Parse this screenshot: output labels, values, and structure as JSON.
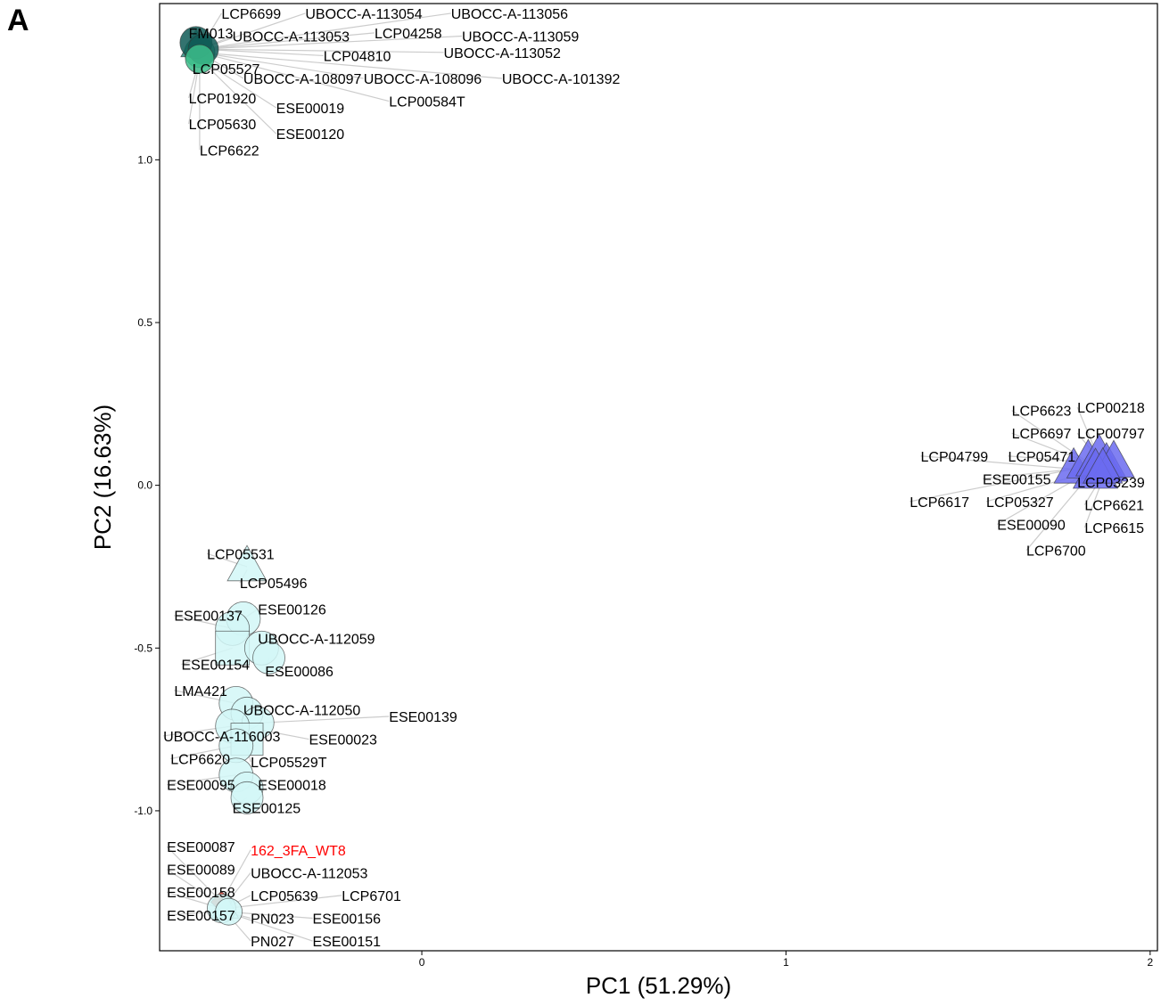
{
  "panel_label": "A",
  "chart_data": {
    "type": "scatter",
    "title": "",
    "xlabel": "PC1 (51.29%)",
    "ylabel": "PC2 (16.63%)",
    "xlim": [
      -0.72,
      2.02
    ],
    "ylim": [
      -1.43,
      1.48
    ],
    "x_ticks": [
      {
        "value": 0,
        "label": "0"
      },
      {
        "value": 1,
        "label": "1"
      },
      {
        "value": 2,
        "label": "2"
      }
    ],
    "y_ticks": [
      {
        "value": 1.0,
        "label": "1.0"
      },
      {
        "value": 0.5,
        "label": "0.5"
      },
      {
        "value": 0.0,
        "label": "0.0"
      },
      {
        "value": -0.5,
        "label": "-0.5"
      },
      {
        "value": -1.0,
        "label": "-1.0"
      }
    ],
    "grid": false,
    "legend": "none",
    "colors": {
      "dark_teal": "#0f5a56",
      "teal": "#2f8a7e",
      "green": "#3dbd8b",
      "blue": "#6b6bf0",
      "light_cyan": "#d2f7f7",
      "red_marker": "#d9463b",
      "highlight_label": "#ff0000",
      "label": "#000000",
      "leader_line": "#cccccc"
    },
    "points": [
      {
        "x": -0.62,
        "y": 1.35,
        "shape": "triangle",
        "color": "#2f8a7e",
        "size": 34
      },
      {
        "x": -0.61,
        "y": 1.33,
        "shape": "circle",
        "color": "#3dbd8b",
        "size": 34
      },
      {
        "x": -0.62,
        "y": 1.36,
        "shape": "circle",
        "color": "#0f5a56",
        "size": 36
      },
      {
        "x": -0.6,
        "y": 1.34,
        "shape": "circle",
        "color": "#0f5a56",
        "size": 34
      },
      {
        "x": -0.61,
        "y": 1.31,
        "shape": "circle",
        "color": "#3dbd8b",
        "size": 32
      },
      {
        "x": 1.79,
        "y": 0.05,
        "shape": "triangle",
        "color": "#6b6bf0",
        "size": 44
      },
      {
        "x": 1.83,
        "y": 0.07,
        "shape": "triangle",
        "color": "#6b6bf0",
        "size": 48
      },
      {
        "x": 1.86,
        "y": 0.08,
        "shape": "triangle",
        "color": "#6b6bf0",
        "size": 52
      },
      {
        "x": 1.88,
        "y": 0.06,
        "shape": "triangle",
        "color": "#6b6bf0",
        "size": 48
      },
      {
        "x": 1.9,
        "y": 0.07,
        "shape": "triangle",
        "color": "#6b6bf0",
        "size": 46
      },
      {
        "x": 1.85,
        "y": 0.04,
        "shape": "triangle",
        "color": "#6b6bf0",
        "size": 50
      },
      {
        "x": 1.87,
        "y": 0.05,
        "shape": "triangle",
        "color": "#6b6bf0",
        "size": 44
      },
      {
        "x": -0.48,
        "y": -0.25,
        "shape": "triangle",
        "color": "#d2f7f7",
        "size": 44
      },
      {
        "x": -0.49,
        "y": -0.41,
        "shape": "circle",
        "color": "#d2f7f7",
        "size": 38
      },
      {
        "x": -0.52,
        "y": -0.44,
        "shape": "circle",
        "color": "#d2f7f7",
        "size": 38
      },
      {
        "x": -0.52,
        "y": -0.5,
        "shape": "square",
        "color": "#d2f7f7",
        "size": 38
      },
      {
        "x": -0.44,
        "y": -0.5,
        "shape": "circle",
        "color": "#d2f7f7",
        "size": 38
      },
      {
        "x": -0.42,
        "y": -0.53,
        "shape": "circle",
        "color": "#d2f7f7",
        "size": 36
      },
      {
        "x": -0.51,
        "y": -0.67,
        "shape": "circle",
        "color": "#d2f7f7",
        "size": 38
      },
      {
        "x": -0.48,
        "y": -0.7,
        "shape": "circle",
        "color": "#d2f7f7",
        "size": 36
      },
      {
        "x": -0.45,
        "y": -0.73,
        "shape": "circle",
        "color": "#d2f7f7",
        "size": 36
      },
      {
        "x": -0.52,
        "y": -0.74,
        "shape": "circle",
        "color": "#d2f7f7",
        "size": 38
      },
      {
        "x": -0.48,
        "y": -0.78,
        "shape": "square",
        "color": "#d2f7f7",
        "size": 36
      },
      {
        "x": -0.51,
        "y": -0.8,
        "shape": "circle",
        "color": "#d2f7f7",
        "size": 38
      },
      {
        "x": -0.51,
        "y": -0.89,
        "shape": "circle",
        "color": "#d2f7f7",
        "size": 38
      },
      {
        "x": -0.48,
        "y": -0.93,
        "shape": "circle",
        "color": "#d2f7f7",
        "size": 36
      },
      {
        "x": -0.48,
        "y": -0.96,
        "shape": "circle",
        "color": "#d2f7f7",
        "size": 36
      },
      {
        "x": -0.55,
        "y": -1.28,
        "shape": "diamond",
        "color": "#d9463b",
        "size": 24
      },
      {
        "x": -0.54,
        "y": -1.3,
        "shape": "triangle",
        "color": "#d2f7f7",
        "size": 30
      },
      {
        "x": -0.55,
        "y": -1.3,
        "shape": "circle",
        "color": "#d2f7f7",
        "size": 32
      },
      {
        "x": -0.53,
        "y": -1.31,
        "shape": "circle",
        "color": "#d2f7f7",
        "size": 30
      }
    ],
    "annotations": [
      {
        "text": "LCP6699",
        "x": -0.55,
        "y": 1.45,
        "ax": -0.61,
        "ay": 1.34
      },
      {
        "text": "UBOCC-A-113054",
        "x": -0.32,
        "y": 1.45,
        "ax": -0.61,
        "ay": 1.34
      },
      {
        "text": "UBOCC-A-113056",
        "x": 0.08,
        "y": 1.45,
        "ax": -0.61,
        "ay": 1.34
      },
      {
        "text": "FM013",
        "x": -0.64,
        "y": 1.39,
        "ax": -0.62,
        "ay": 1.35
      },
      {
        "text": "UBOCC-A-113053",
        "x": -0.52,
        "y": 1.38,
        "ax": -0.61,
        "ay": 1.34
      },
      {
        "text": "LCP04258",
        "x": -0.13,
        "y": 1.39,
        "ax": -0.61,
        "ay": 1.34
      },
      {
        "text": "UBOCC-A-113059",
        "x": 0.11,
        "y": 1.38,
        "ax": -0.61,
        "ay": 1.34
      },
      {
        "text": "LCP04810",
        "x": -0.27,
        "y": 1.32,
        "ax": -0.61,
        "ay": 1.34
      },
      {
        "text": "UBOCC-A-113052",
        "x": 0.06,
        "y": 1.33,
        "ax": -0.61,
        "ay": 1.34
      },
      {
        "text": "LCP05527",
        "x": -0.63,
        "y": 1.28,
        "ax": -0.61,
        "ay": 1.32
      },
      {
        "text": "UBOCC-A-108097",
        "x": -0.49,
        "y": 1.25,
        "ax": -0.61,
        "ay": 1.33
      },
      {
        "text": "UBOCC-A-108096",
        "x": -0.16,
        "y": 1.25,
        "ax": -0.61,
        "ay": 1.33
      },
      {
        "text": "UBOCC-A-101392",
        "x": 0.22,
        "y": 1.25,
        "ax": -0.61,
        "ay": 1.33
      },
      {
        "text": "LCP01920",
        "x": -0.64,
        "y": 1.19,
        "ax": -0.61,
        "ay": 1.31
      },
      {
        "text": "ESE00019",
        "x": -0.4,
        "y": 1.16,
        "ax": -0.61,
        "ay": 1.31
      },
      {
        "text": "LCP00584T",
        "x": -0.09,
        "y": 1.18,
        "ax": -0.61,
        "ay": 1.33
      },
      {
        "text": "LCP05630",
        "x": -0.64,
        "y": 1.11,
        "ax": -0.61,
        "ay": 1.31
      },
      {
        "text": "ESE00120",
        "x": -0.4,
        "y": 1.08,
        "ax": -0.61,
        "ay": 1.31
      },
      {
        "text": "LCP6622",
        "x": -0.61,
        "y": 1.03,
        "ax": -0.61,
        "ay": 1.31
      },
      {
        "text": "LCP6623",
        "x": 1.62,
        "y": 0.23,
        "ax": 1.83,
        "ay": 0.07
      },
      {
        "text": "LCP00218",
        "x": 1.8,
        "y": 0.24,
        "ax": 1.86,
        "ay": 0.08
      },
      {
        "text": "LCP6697",
        "x": 1.62,
        "y": 0.16,
        "ax": 1.83,
        "ay": 0.07
      },
      {
        "text": "LCP00797",
        "x": 1.8,
        "y": 0.16,
        "ax": 1.86,
        "ay": 0.08
      },
      {
        "text": "LCP04799",
        "x": 1.37,
        "y": 0.09,
        "ax": 1.79,
        "ay": 0.05
      },
      {
        "text": "LCP05471",
        "x": 1.61,
        "y": 0.09,
        "ax": 1.83,
        "ay": 0.07
      },
      {
        "text": "ESE00155",
        "x": 1.54,
        "y": 0.02,
        "ax": 1.79,
        "ay": 0.05
      },
      {
        "text": "LCP03239",
        "x": 1.8,
        "y": 0.01,
        "ax": 1.87,
        "ay": 0.05
      },
      {
        "text": "LCP6617",
        "x": 1.34,
        "y": -0.05,
        "ax": 1.79,
        "ay": 0.05
      },
      {
        "text": "LCP05327",
        "x": 1.55,
        "y": -0.05,
        "ax": 1.83,
        "ay": 0.04
      },
      {
        "text": "LCP6621",
        "x": 1.82,
        "y": -0.06,
        "ax": 1.88,
        "ay": 0.05
      },
      {
        "text": "ESE00090",
        "x": 1.58,
        "y": -0.12,
        "ax": 1.83,
        "ay": 0.04
      },
      {
        "text": "LCP6615",
        "x": 1.82,
        "y": -0.13,
        "ax": 1.88,
        "ay": 0.05
      },
      {
        "text": "LCP6700",
        "x": 1.66,
        "y": -0.2,
        "ax": 1.84,
        "ay": 0.04
      },
      {
        "text": "LCP05531",
        "x": -0.59,
        "y": -0.21,
        "ax": -0.48,
        "ay": -0.25
      },
      {
        "text": "LCP05496",
        "x": -0.5,
        "y": -0.3,
        "ax": -0.48,
        "ay": -0.26
      },
      {
        "text": "ESE00137",
        "x": -0.68,
        "y": -0.4,
        "ax": -0.52,
        "ay": -0.44
      },
      {
        "text": "ESE00126",
        "x": -0.45,
        "y": -0.38,
        "ax": -0.49,
        "ay": -0.41
      },
      {
        "text": "UBOCC-A-112059",
        "x": -0.45,
        "y": -0.47,
        "ax": -0.44,
        "ay": -0.5
      },
      {
        "text": "ESE00154",
        "x": -0.66,
        "y": -0.55,
        "ax": -0.52,
        "ay": -0.5
      },
      {
        "text": "ESE00086",
        "x": -0.43,
        "y": -0.57,
        "ax": -0.42,
        "ay": -0.53
      },
      {
        "text": "LMA421",
        "x": -0.68,
        "y": -0.63,
        "ax": -0.51,
        "ay": -0.67
      },
      {
        "text": "UBOCC-A-112050",
        "x": -0.49,
        "y": -0.69,
        "ax": -0.48,
        "ay": -0.7
      },
      {
        "text": "ESE00139",
        "x": -0.09,
        "y": -0.71,
        "ax": -0.45,
        "ay": -0.73
      },
      {
        "text": "UBOCC-A-116003",
        "x": -0.71,
        "y": -0.77,
        "ax": -0.52,
        "ay": -0.74
      },
      {
        "text": "ESE00023",
        "x": -0.31,
        "y": -0.78,
        "ax": -0.45,
        "ay": -0.75
      },
      {
        "text": "LCP6620",
        "x": -0.69,
        "y": -0.84,
        "ax": -0.51,
        "ay": -0.8
      },
      {
        "text": "LCP05529T",
        "x": -0.47,
        "y": -0.85,
        "ax": -0.48,
        "ay": -0.8
      },
      {
        "text": "ESE00095",
        "x": -0.7,
        "y": -0.92,
        "ax": -0.51,
        "ay": -0.89
      },
      {
        "text": "ESE00018",
        "x": -0.45,
        "y": -0.92,
        "ax": -0.48,
        "ay": -0.93
      },
      {
        "text": "ESE00125",
        "x": -0.52,
        "y": -0.99,
        "ax": -0.48,
        "ay": -0.96
      },
      {
        "text": "ESE00087",
        "x": -0.7,
        "y": -1.11,
        "ax": -0.55,
        "ay": -1.28
      },
      {
        "text": "162_3FA_WT8",
        "x": -0.47,
        "y": -1.12,
        "ax": -0.55,
        "ay": -1.28,
        "highlight": true
      },
      {
        "text": "ESE00089",
        "x": -0.7,
        "y": -1.18,
        "ax": -0.55,
        "ay": -1.29
      },
      {
        "text": "UBOCC-A-112053",
        "x": -0.47,
        "y": -1.19,
        "ax": -0.54,
        "ay": -1.29
      },
      {
        "text": "ESE00158",
        "x": -0.7,
        "y": -1.25,
        "ax": -0.55,
        "ay": -1.3
      },
      {
        "text": "LCP05639",
        "x": -0.47,
        "y": -1.26,
        "ax": -0.54,
        "ay": -1.3
      },
      {
        "text": "LCP6701",
        "x": -0.22,
        "y": -1.26,
        "ax": -0.54,
        "ay": -1.3
      },
      {
        "text": "ESE00157",
        "x": -0.7,
        "y": -1.32,
        "ax": -0.55,
        "ay": -1.31
      },
      {
        "text": "PN023",
        "x": -0.47,
        "y": -1.33,
        "ax": -0.54,
        "ay": -1.31
      },
      {
        "text": "ESE00156",
        "x": -0.3,
        "y": -1.33,
        "ax": -0.54,
        "ay": -1.31
      },
      {
        "text": "PN027",
        "x": -0.47,
        "y": -1.4,
        "ax": -0.54,
        "ay": -1.31
      },
      {
        "text": "ESE00151",
        "x": -0.3,
        "y": -1.4,
        "ax": -0.54,
        "ay": -1.31
      }
    ]
  }
}
